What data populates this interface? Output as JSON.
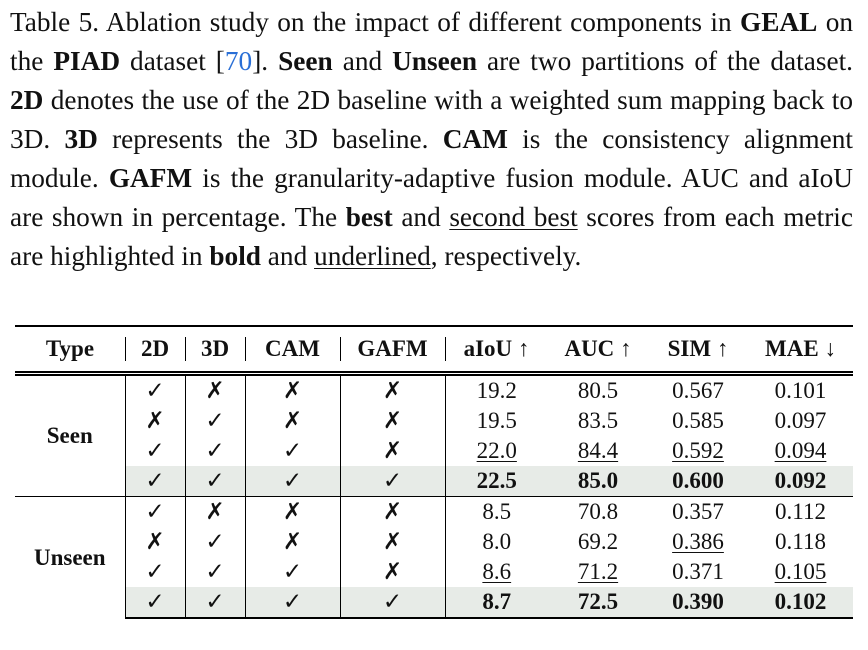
{
  "caption": [
    {
      "text": "Table 5.  Ablation study on the impact of different components in "
    },
    {
      "text": "GEAL",
      "style": "bold"
    },
    {
      "text": " on the "
    },
    {
      "text": "PIAD",
      "style": "bold"
    },
    {
      "text": " dataset ["
    },
    {
      "text": "70",
      "style": "link"
    },
    {
      "text": "].  "
    },
    {
      "text": "Seen",
      "style": "bold"
    },
    {
      "text": " and "
    },
    {
      "text": "Unseen",
      "style": "bold"
    },
    {
      "text": " are two partitions of the dataset.  "
    },
    {
      "text": "2D",
      "style": "bold"
    },
    {
      "text": " denotes the use of the 2D baseline with a weighted sum mapping back to 3D. "
    },
    {
      "text": "3D",
      "style": "bold"
    },
    {
      "text": " represents the 3D baseline.  "
    },
    {
      "text": "CAM",
      "style": "bold"
    },
    {
      "text": " is the consistency alignment module.  "
    },
    {
      "text": "GAFM",
      "style": "bold"
    },
    {
      "text": " is the granularity-adaptive fusion module. AUC and aIoU are shown in percentage.  The "
    },
    {
      "text": "best",
      "style": "bold"
    },
    {
      "text": " and "
    },
    {
      "text": "second best",
      "style": "underline"
    },
    {
      "text": " scores from each metric are highlighted in "
    },
    {
      "text": "bold",
      "style": "bold"
    },
    {
      "text": " and "
    },
    {
      "text": "underlined",
      "style": "underline"
    },
    {
      "text": ", respectively."
    }
  ],
  "table": {
    "header": [
      "Type",
      "2D",
      "3D",
      "CAM",
      "GAFM",
      "aIoU ↑",
      "AUC ↑",
      "SIM ↑",
      "MAE ↓"
    ],
    "groups": [
      {
        "label": "Seen",
        "rows": [
          [
            "✓",
            "✗",
            "✗",
            "✗",
            "19.2",
            "80.5",
            "0.567",
            "0.101"
          ],
          [
            "✗",
            "✓",
            "✗",
            "✗",
            "19.5",
            "83.5",
            "0.585",
            "0.097"
          ],
          [
            "✓",
            "✓",
            "✓",
            "✗",
            {
              "text": "22.0",
              "style": "underline"
            },
            {
              "text": "84.4",
              "style": "underline"
            },
            {
              "text": "0.592",
              "style": "underline"
            },
            {
              "text": "0.094",
              "style": "underline"
            }
          ],
          [
            "✓",
            "✓",
            "✓",
            "✓",
            {
              "text": "22.5",
              "style": "bold"
            },
            {
              "text": "85.0",
              "style": "bold"
            },
            {
              "text": "0.600",
              "style": "bold"
            },
            {
              "text": "0.092",
              "style": "bold"
            }
          ]
        ]
      },
      {
        "label": "Unseen",
        "rows": [
          [
            "✓",
            "✗",
            "✗",
            "✗",
            "8.5",
            "70.8",
            "0.357",
            "0.112"
          ],
          [
            "✗",
            "✓",
            "✗",
            "✗",
            "8.0",
            "69.2",
            {
              "text": "0.386",
              "style": "underline"
            },
            "0.118"
          ],
          [
            "✓",
            "✓",
            "✓",
            "✗",
            {
              "text": "8.6",
              "style": "underline"
            },
            {
              "text": "71.2",
              "style": "underline"
            },
            "0.371",
            {
              "text": "0.105",
              "style": "underline"
            }
          ],
          [
            "✓",
            "✓",
            "✓",
            "✓",
            {
              "text": "8.7",
              "style": "bold"
            },
            {
              "text": "72.5",
              "style": "bold"
            },
            {
              "text": "0.390",
              "style": "bold"
            },
            {
              "text": "0.102",
              "style": "bold"
            }
          ]
        ]
      }
    ]
  }
}
